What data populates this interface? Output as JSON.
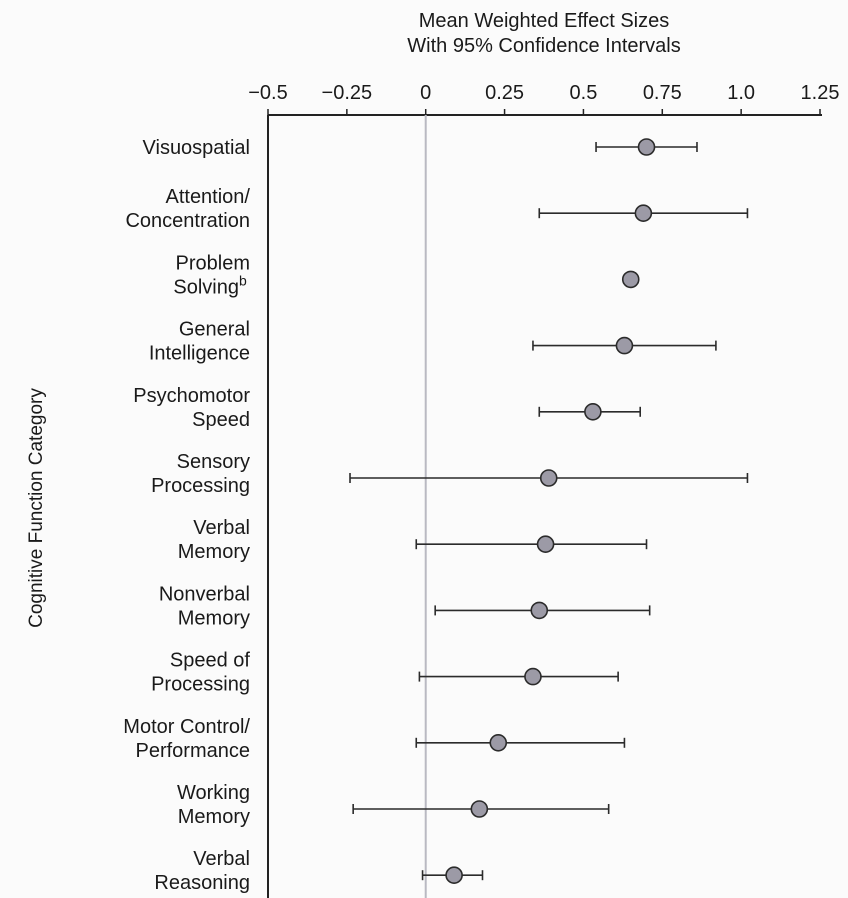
{
  "chart_data": {
    "type": "scatter",
    "title_lines": [
      "Mean Weighted Effect Sizes",
      "With 95% Confidence Intervals"
    ],
    "ylabel": "Cognitive Function Category",
    "xlim": [
      -0.5,
      1.25
    ],
    "x_ticks": [
      {
        "value": -0.5,
        "label": "−0.5"
      },
      {
        "value": -0.25,
        "label": "−0.25"
      },
      {
        "value": 0,
        "label": "0"
      },
      {
        "value": 0.25,
        "label": "0.25"
      },
      {
        "value": 0.5,
        "label": "0.5"
      },
      {
        "value": 0.75,
        "label": "0.75"
      },
      {
        "value": 1.0,
        "label": "1.0"
      },
      {
        "value": 1.25,
        "label": "1.25"
      }
    ],
    "reference_line": 0,
    "marker_color": "#9c9aa6",
    "categories": [
      {
        "lines": [
          "Visuospatial"
        ],
        "mean": 0.7,
        "ci_low": 0.54,
        "ci_high": 0.86
      },
      {
        "lines": [
          "Attention/",
          "Concentration"
        ],
        "mean": 0.69,
        "ci_low": 0.36,
        "ci_high": 1.02
      },
      {
        "lines": [
          "Problem",
          "Solving"
        ],
        "superscript": "b",
        "mean": 0.65,
        "ci_low": null,
        "ci_high": null
      },
      {
        "lines": [
          "General",
          "Intelligence"
        ],
        "mean": 0.63,
        "ci_low": 0.34,
        "ci_high": 0.92
      },
      {
        "lines": [
          "Psychomotor",
          "Speed"
        ],
        "mean": 0.53,
        "ci_low": 0.36,
        "ci_high": 0.68
      },
      {
        "lines": [
          "Sensory",
          "Processing"
        ],
        "mean": 0.39,
        "ci_low": -0.24,
        "ci_high": 1.02
      },
      {
        "lines": [
          "Verbal",
          "Memory"
        ],
        "mean": 0.38,
        "ci_low": -0.03,
        "ci_high": 0.7
      },
      {
        "lines": [
          "Nonverbal",
          "Memory"
        ],
        "mean": 0.36,
        "ci_low": 0.03,
        "ci_high": 0.71
      },
      {
        "lines": [
          "Speed of",
          "Processing"
        ],
        "mean": 0.34,
        "ci_low": -0.02,
        "ci_high": 0.61
      },
      {
        "lines": [
          "Motor Control/",
          "Performance"
        ],
        "mean": 0.23,
        "ci_low": -0.03,
        "ci_high": 0.63
      },
      {
        "lines": [
          "Working",
          "Memory"
        ],
        "mean": 0.17,
        "ci_low": -0.23,
        "ci_high": 0.58
      },
      {
        "lines": [
          "Verbal",
          "Reasoning"
        ],
        "mean": 0.09,
        "ci_low": -0.01,
        "ci_high": 0.18
      }
    ]
  }
}
